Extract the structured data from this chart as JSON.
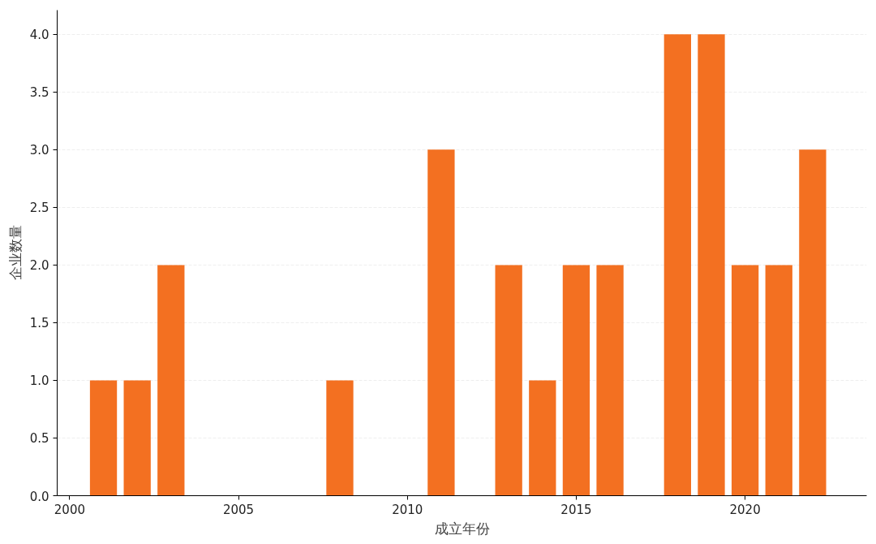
{
  "chart_data": {
    "type": "bar",
    "xlabel": "成立年份",
    "ylabel": "企业数量",
    "x": [
      2001,
      2002,
      2003,
      2008,
      2011,
      2013,
      2014,
      2015,
      2016,
      2018,
      2019,
      2020,
      2021,
      2022
    ],
    "values": [
      1,
      1,
      2,
      1,
      3,
      2,
      1,
      2,
      2,
      4,
      4,
      2,
      2,
      3
    ],
    "color": "#f37021",
    "xlim": [
      1999.63,
      2023.6
    ],
    "xticks": [
      2000,
      2005,
      2010,
      2015,
      2020
    ],
    "ylim": [
      0,
      4.21
    ],
    "yticks": [
      {
        "value": 0,
        "label": "0.0"
      },
      {
        "value": 0.5,
        "label": "0.5"
      },
      {
        "value": 1,
        "label": "1.0"
      },
      {
        "value": 1.5,
        "label": "1.5"
      },
      {
        "value": 2,
        "label": "2.0"
      },
      {
        "value": 2.5,
        "label": "2.5"
      },
      {
        "value": 3,
        "label": "3.0"
      },
      {
        "value": 3.5,
        "label": "3.5"
      },
      {
        "value": 4,
        "label": "4.0"
      }
    ],
    "grid": "y"
  }
}
